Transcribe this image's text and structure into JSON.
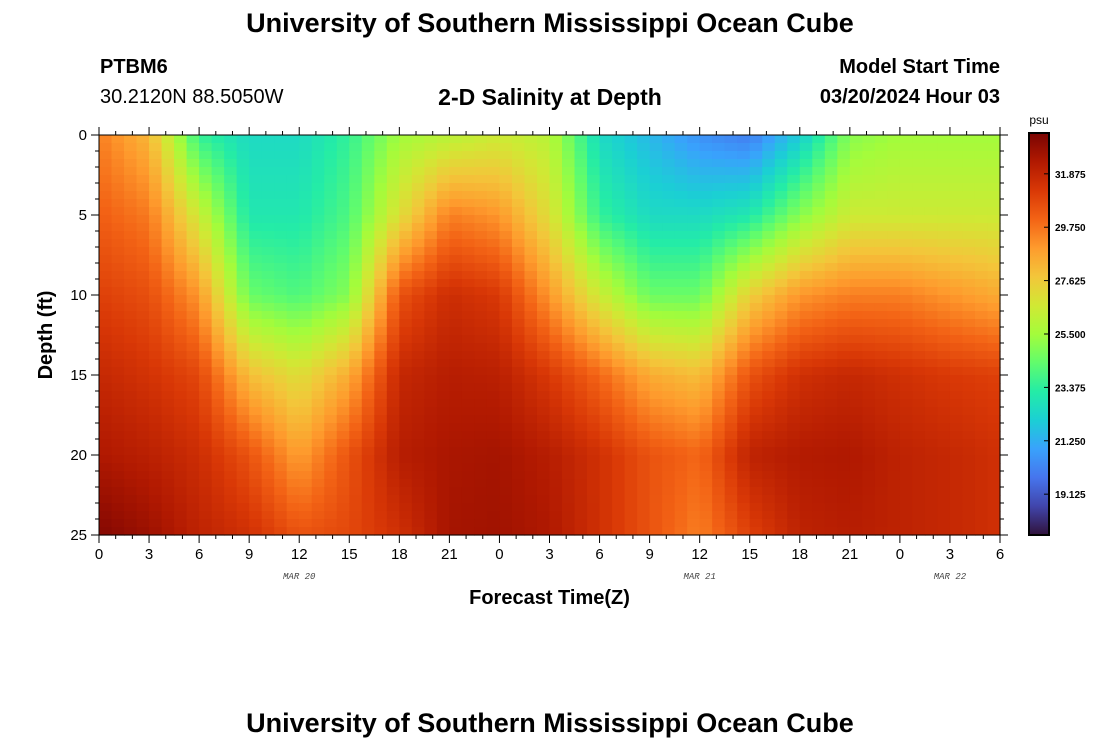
{
  "header": {
    "title": "University of Southern Mississippi Ocean Cube",
    "station": "PTBM6",
    "coordinates": "30.2120N  88.5050W",
    "subtitle": "2-D Salinity at Depth",
    "model_start_label": "Model Start Time",
    "model_start_value": "03/20/2024 Hour 03"
  },
  "footer": {
    "title": "University of Southern Mississippi Ocean Cube"
  },
  "chart_data": {
    "type": "heatmap",
    "title": "2-D Salinity at Depth",
    "xlabel": "Forecast Time(Z)",
    "ylabel": "Depth (ft)",
    "x_tick_labels": [
      "0",
      "3",
      "6",
      "9",
      "12",
      "15",
      "18",
      "21",
      "0",
      "3",
      "6",
      "9",
      "12",
      "15",
      "18",
      "21",
      "0",
      "3",
      "6"
    ],
    "x_hours": [
      0,
      3,
      6,
      9,
      12,
      15,
      18,
      21,
      24,
      27,
      30,
      33,
      36,
      39,
      42,
      45,
      48,
      51,
      54
    ],
    "xlim_hours": [
      0,
      54
    ],
    "date_labels": [
      {
        "text": "MAR 20",
        "hour": 12
      },
      {
        "text": "MAR 21",
        "hour": 36
      },
      {
        "text": "MAR 22",
        "hour": 51
      }
    ],
    "y_ticks": [
      0,
      5,
      10,
      15,
      20,
      25
    ],
    "y_tick_labels": [
      "0",
      "5",
      "10",
      "15",
      "20",
      "25"
    ],
    "ylim_ft": [
      0,
      25
    ],
    "y_inverted": true,
    "colorbar": {
      "unit": "psu",
      "min": 17.5,
      "max": 33.5,
      "tick_values": [
        31.875,
        29.75,
        27.625,
        25.5,
        23.375,
        21.25,
        19.125
      ],
      "tick_labels": [
        "31.875",
        "29.750",
        "27.625",
        "25.500",
        "23.375",
        "21.250",
        "19.125"
      ]
    },
    "salinity_psu_profiles": {
      "depths_ft": [
        0,
        5,
        10,
        15,
        20,
        25
      ],
      "columns": [
        {
          "hour": 0,
          "values": [
            29.5,
            30.2,
            31.0,
            31.8,
            32.4,
            33.3
          ]
        },
        {
          "hour": 3,
          "values": [
            28.2,
            29.6,
            30.6,
            31.4,
            32.1,
            32.8
          ]
        },
        {
          "hour": 6,
          "values": [
            23.5,
            26.5,
            29.0,
            30.8,
            31.6,
            32.0
          ]
        },
        {
          "hour": 9,
          "values": [
            22.5,
            23.0,
            24.5,
            28.0,
            30.5,
            31.5
          ]
        },
        {
          "hour": 12,
          "values": [
            22.5,
            23.0,
            24.0,
            27.0,
            28.8,
            30.5
          ]
        },
        {
          "hour": 15,
          "values": [
            23.5,
            24.0,
            25.0,
            28.5,
            30.5,
            30.8
          ]
        },
        {
          "hour": 18,
          "values": [
            25.5,
            27.0,
            30.5,
            31.8,
            32.2,
            31.5
          ]
        },
        {
          "hour": 21,
          "values": [
            26.0,
            29.5,
            31.6,
            32.2,
            32.5,
            32.6
          ]
        },
        {
          "hour": 24,
          "values": [
            26.5,
            29.0,
            31.2,
            32.1,
            32.6,
            32.7
          ]
        },
        {
          "hour": 27,
          "values": [
            26.0,
            27.0,
            29.0,
            31.2,
            32.2,
            32.4
          ]
        },
        {
          "hour": 30,
          "values": [
            22.5,
            23.5,
            26.5,
            30.0,
            31.5,
            31.5
          ]
        },
        {
          "hour": 33,
          "values": [
            21.5,
            22.5,
            24.5,
            28.5,
            30.5,
            30.5
          ]
        },
        {
          "hour": 36,
          "values": [
            20.5,
            22.5,
            24.5,
            28.0,
            30.0,
            29.5
          ]
        },
        {
          "hour": 39,
          "values": [
            20.0,
            23.0,
            27.5,
            30.5,
            32.0,
            31.0
          ]
        },
        {
          "hour": 42,
          "values": [
            22.0,
            25.0,
            29.0,
            31.5,
            32.3,
            32.0
          ]
        },
        {
          "hour": 45,
          "values": [
            25.0,
            26.5,
            29.5,
            31.8,
            32.4,
            32.2
          ]
        },
        {
          "hour": 48,
          "values": [
            25.5,
            26.5,
            29.5,
            31.5,
            32.0,
            32.0
          ]
        },
        {
          "hour": 51,
          "values": [
            25.5,
            26.5,
            29.0,
            31.2,
            31.8,
            31.8
          ]
        },
        {
          "hour": 54,
          "values": [
            25.5,
            26.5,
            28.5,
            31.0,
            31.5,
            31.5
          ]
        }
      ]
    }
  },
  "colors": {
    "colormap": [
      "#30123b",
      "#4145ab",
      "#4675ed",
      "#39a2fc",
      "#1bcfd4",
      "#24eca6",
      "#61fc6c",
      "#a4fc3b",
      "#d1e834",
      "#f3c63a",
      "#fe9b2d",
      "#f36315",
      "#d93806",
      "#b11901",
      "#7a0402"
    ]
  }
}
